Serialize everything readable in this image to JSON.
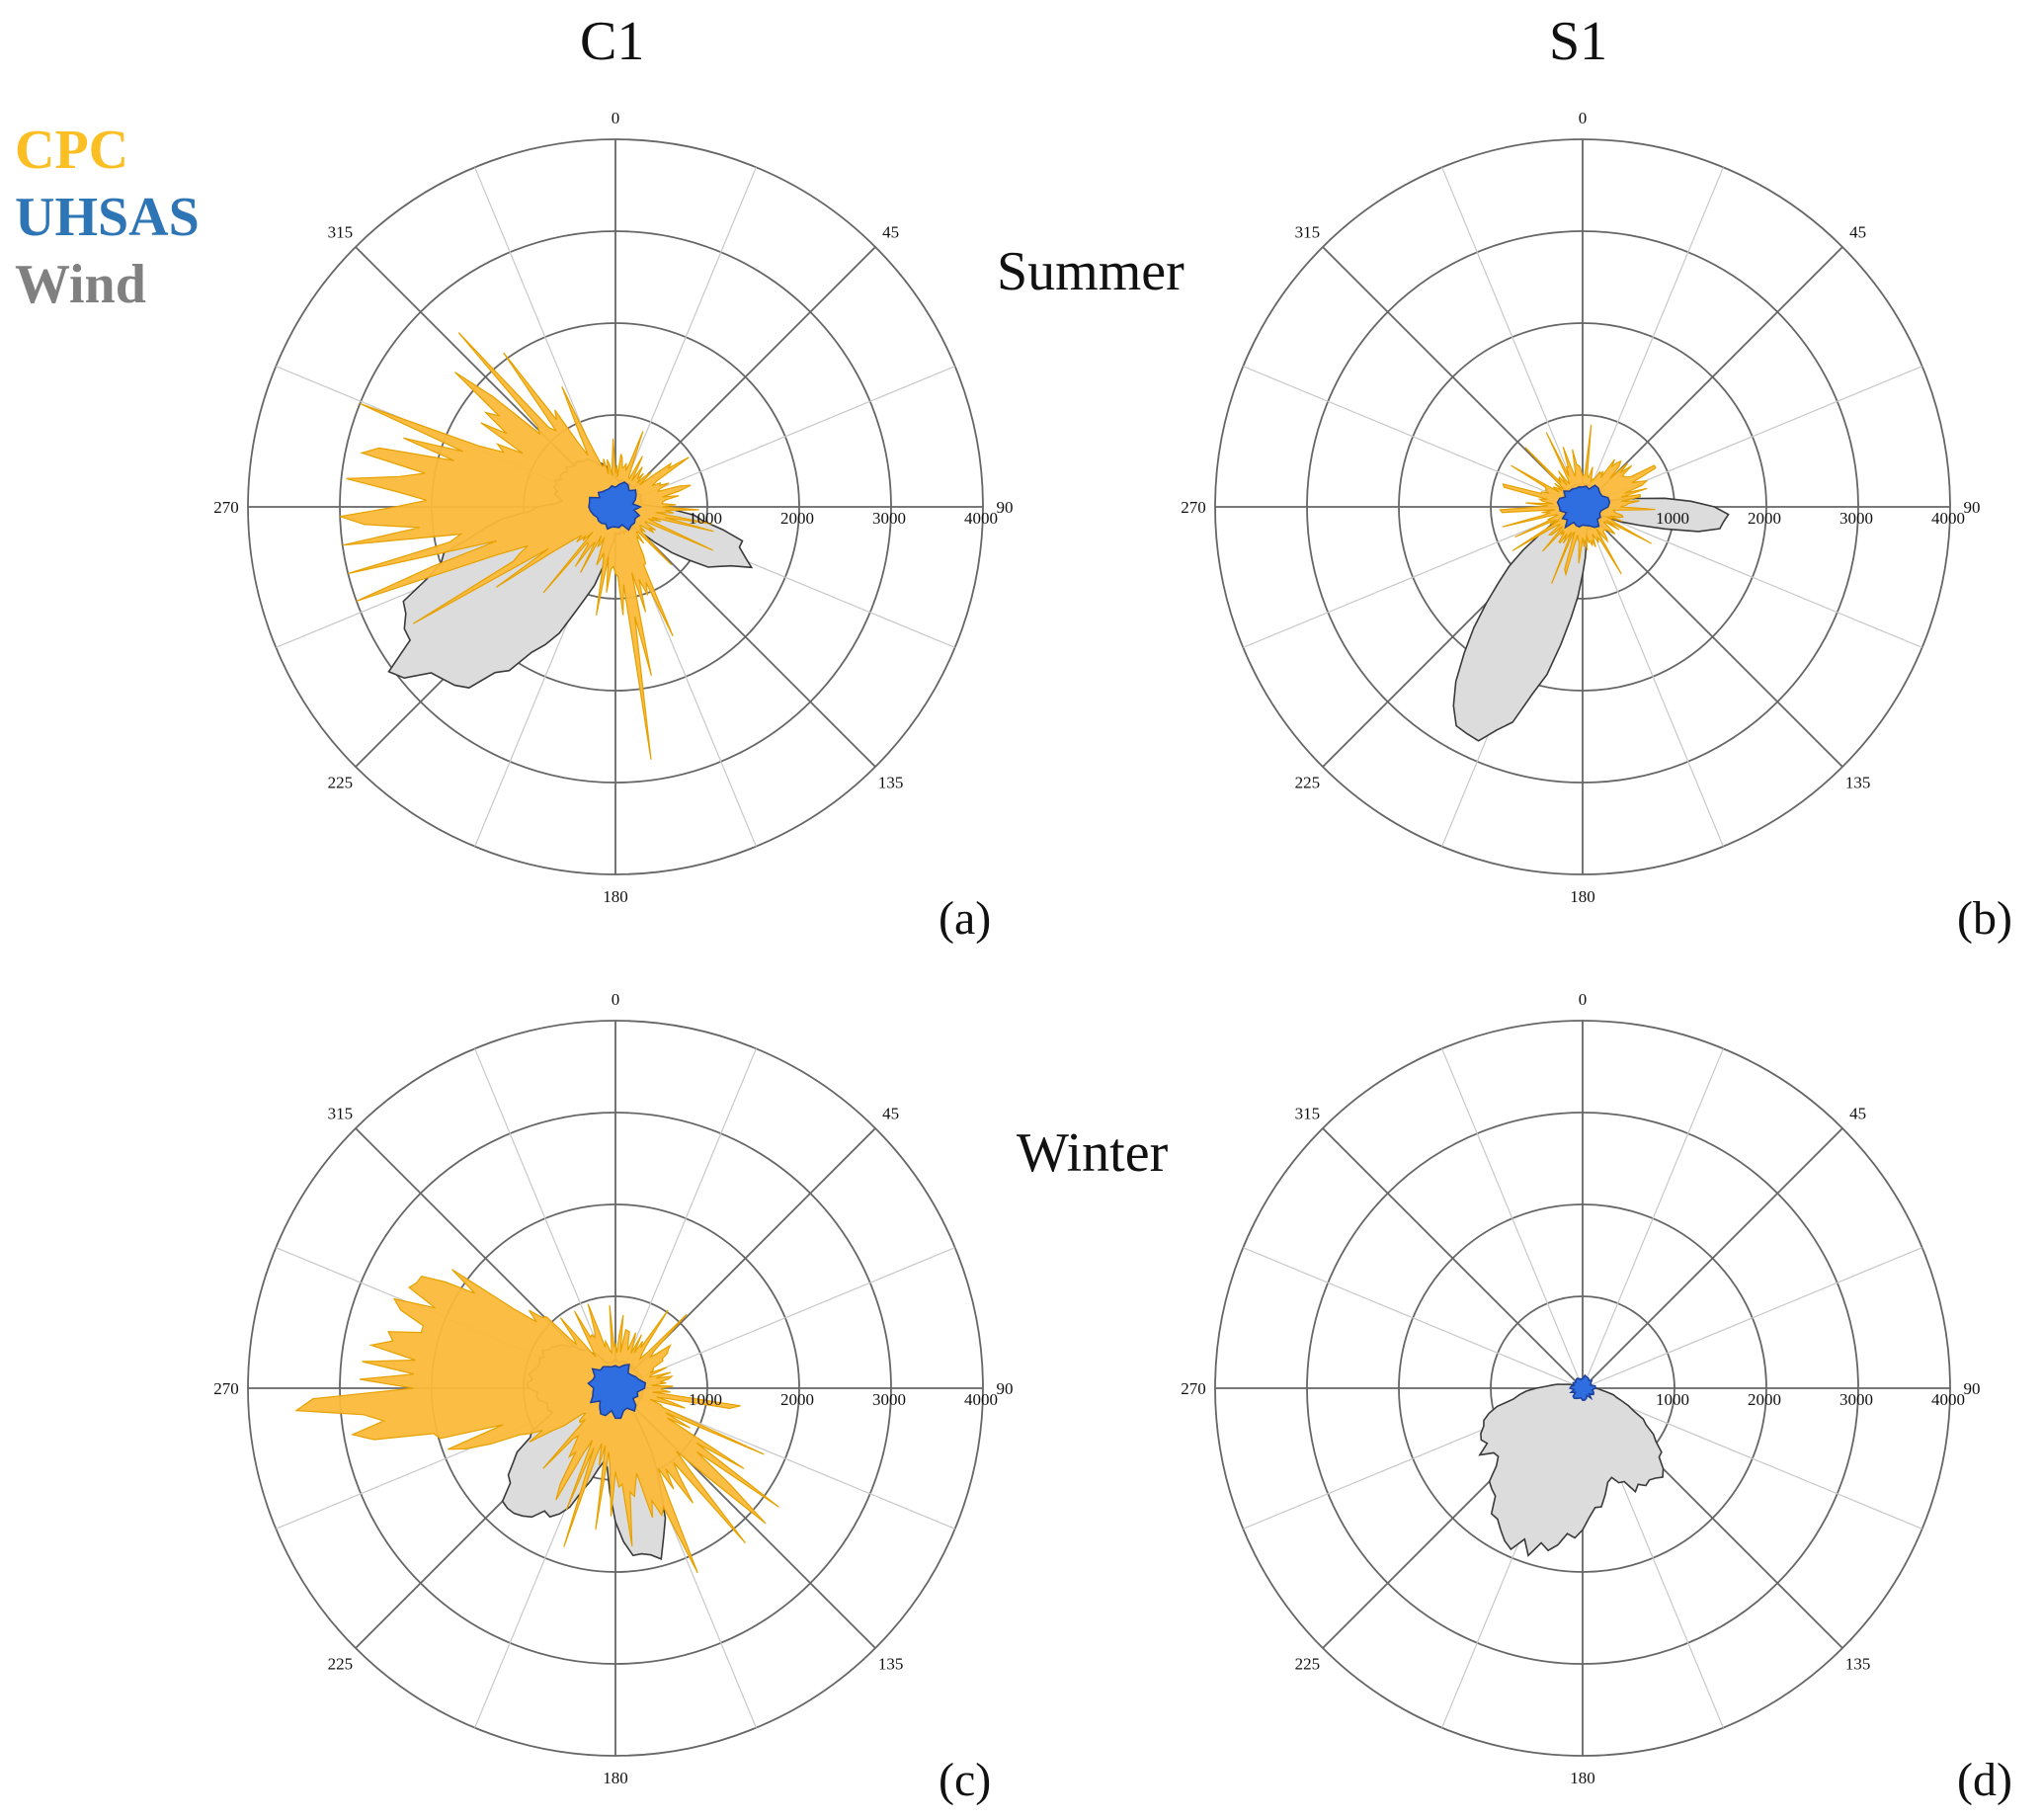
{
  "column_titles": [
    "C1",
    "S1"
  ],
  "row_titles": [
    "Summer",
    "Winter"
  ],
  "legend": [
    {
      "label": "CPC",
      "color": "#fbbf24"
    },
    {
      "label": "UHSAS",
      "color": "#2e75b6"
    },
    {
      "label": "Wind",
      "color": "#808080"
    }
  ],
  "colors": {
    "cpc_fill": "#fbb93a",
    "cpc_stroke": "#e6a100",
    "uhsas_fill": "#2f6ee0",
    "uhsas_stroke": "#1b3f9a",
    "wind_fill": "#dcdcdc",
    "wind_stroke": "#3a3a3a",
    "grid_major": "#666666",
    "grid_minor": "#c8c8c8"
  },
  "chart_data": [
    {
      "type": "polar-area",
      "panel": "(a)",
      "column": "C1",
      "season": "Summer",
      "angle_ticks": [
        "0",
        "45",
        "90",
        "135",
        "180",
        "225",
        "270",
        "315"
      ],
      "radial_ticks": [
        "1000",
        "2000",
        "3000",
        "4000"
      ],
      "rmax": 4000,
      "wind": {
        "lobes": [
          {
            "angle": 232,
            "r": 2950,
            "width": 24
          },
          {
            "angle": 112,
            "r": 1600,
            "width": 14
          },
          {
            "angle": 300,
            "r": 700,
            "width": 50
          }
        ],
        "base": 300
      },
      "cpc": {
        "lobes": [
          {
            "angle": 275,
            "r": 2600,
            "width": 26
          },
          {
            "angle": 305,
            "r": 1600,
            "width": 25
          },
          {
            "angle": 170,
            "r": 1050,
            "width": 22
          },
          {
            "angle": 80,
            "r": 650,
            "width": 30
          }
        ],
        "base": 450,
        "spike_max": 3000
      },
      "uhsas": {
        "r": 250
      }
    },
    {
      "type": "polar-area",
      "panel": "(b)",
      "column": "S1",
      "season": "Summer",
      "angle_ticks": [
        "0",
        "45",
        "90",
        "135",
        "180",
        "225",
        "270",
        "315"
      ],
      "radial_ticks": [
        "1000",
        "2000",
        "3000",
        "4000"
      ],
      "rmax": 4000,
      "wind": {
        "lobes": [
          {
            "angle": 207,
            "r": 2800,
            "width": 17
          },
          {
            "angle": 95,
            "r": 1600,
            "width": 10
          }
        ],
        "base": 250
      },
      "cpc": {
        "lobes": [
          {
            "angle": 60,
            "r": 650,
            "width": 40
          }
        ],
        "base": 400,
        "spike_max": 900
      },
      "uhsas": {
        "r": 250
      }
    },
    {
      "type": "polar-area",
      "panel": "(c)",
      "column": "C1",
      "season": "Winter",
      "angle_ticks": [
        "0",
        "45",
        "90",
        "135",
        "180",
        "225",
        "270",
        "315"
      ],
      "radial_ticks": [
        "1000",
        "2000",
        "3000",
        "4000"
      ],
      "rmax": 4000,
      "wind": {
        "lobes": [
          {
            "angle": 218,
            "r": 1750,
            "width": 24
          },
          {
            "angle": 169,
            "r": 1950,
            "width": 14
          },
          {
            "angle": 280,
            "r": 950,
            "width": 40
          }
        ],
        "base": 300
      },
      "cpc": {
        "lobes": [
          {
            "angle": 278,
            "r": 3300,
            "width": 24
          },
          {
            "angle": 150,
            "r": 1400,
            "width": 30
          },
          {
            "angle": 200,
            "r": 800,
            "width": 40
          }
        ],
        "base": 550,
        "spike_max": 2200
      },
      "uhsas": {
        "r": 280
      }
    },
    {
      "type": "polar-area",
      "panel": "(d)",
      "column": "S1",
      "season": "Winter",
      "angle_ticks": [
        "0",
        "45",
        "90",
        "135",
        "180",
        "225",
        "270",
        "315"
      ],
      "radial_ticks": [
        "1000",
        "2000",
        "3000",
        "4000"
      ],
      "rmax": 4000,
      "wind": {
        "lobes": [
          {
            "angle": 200,
            "r": 1900,
            "width": 32
          },
          {
            "angle": 145,
            "r": 1300,
            "width": 26
          },
          {
            "angle": 240,
            "r": 1300,
            "width": 22
          }
        ],
        "base": 100
      },
      "cpc": {
        "lobes": [],
        "base": 120,
        "spike_max": 0
      },
      "uhsas": {
        "r": 120
      }
    }
  ]
}
